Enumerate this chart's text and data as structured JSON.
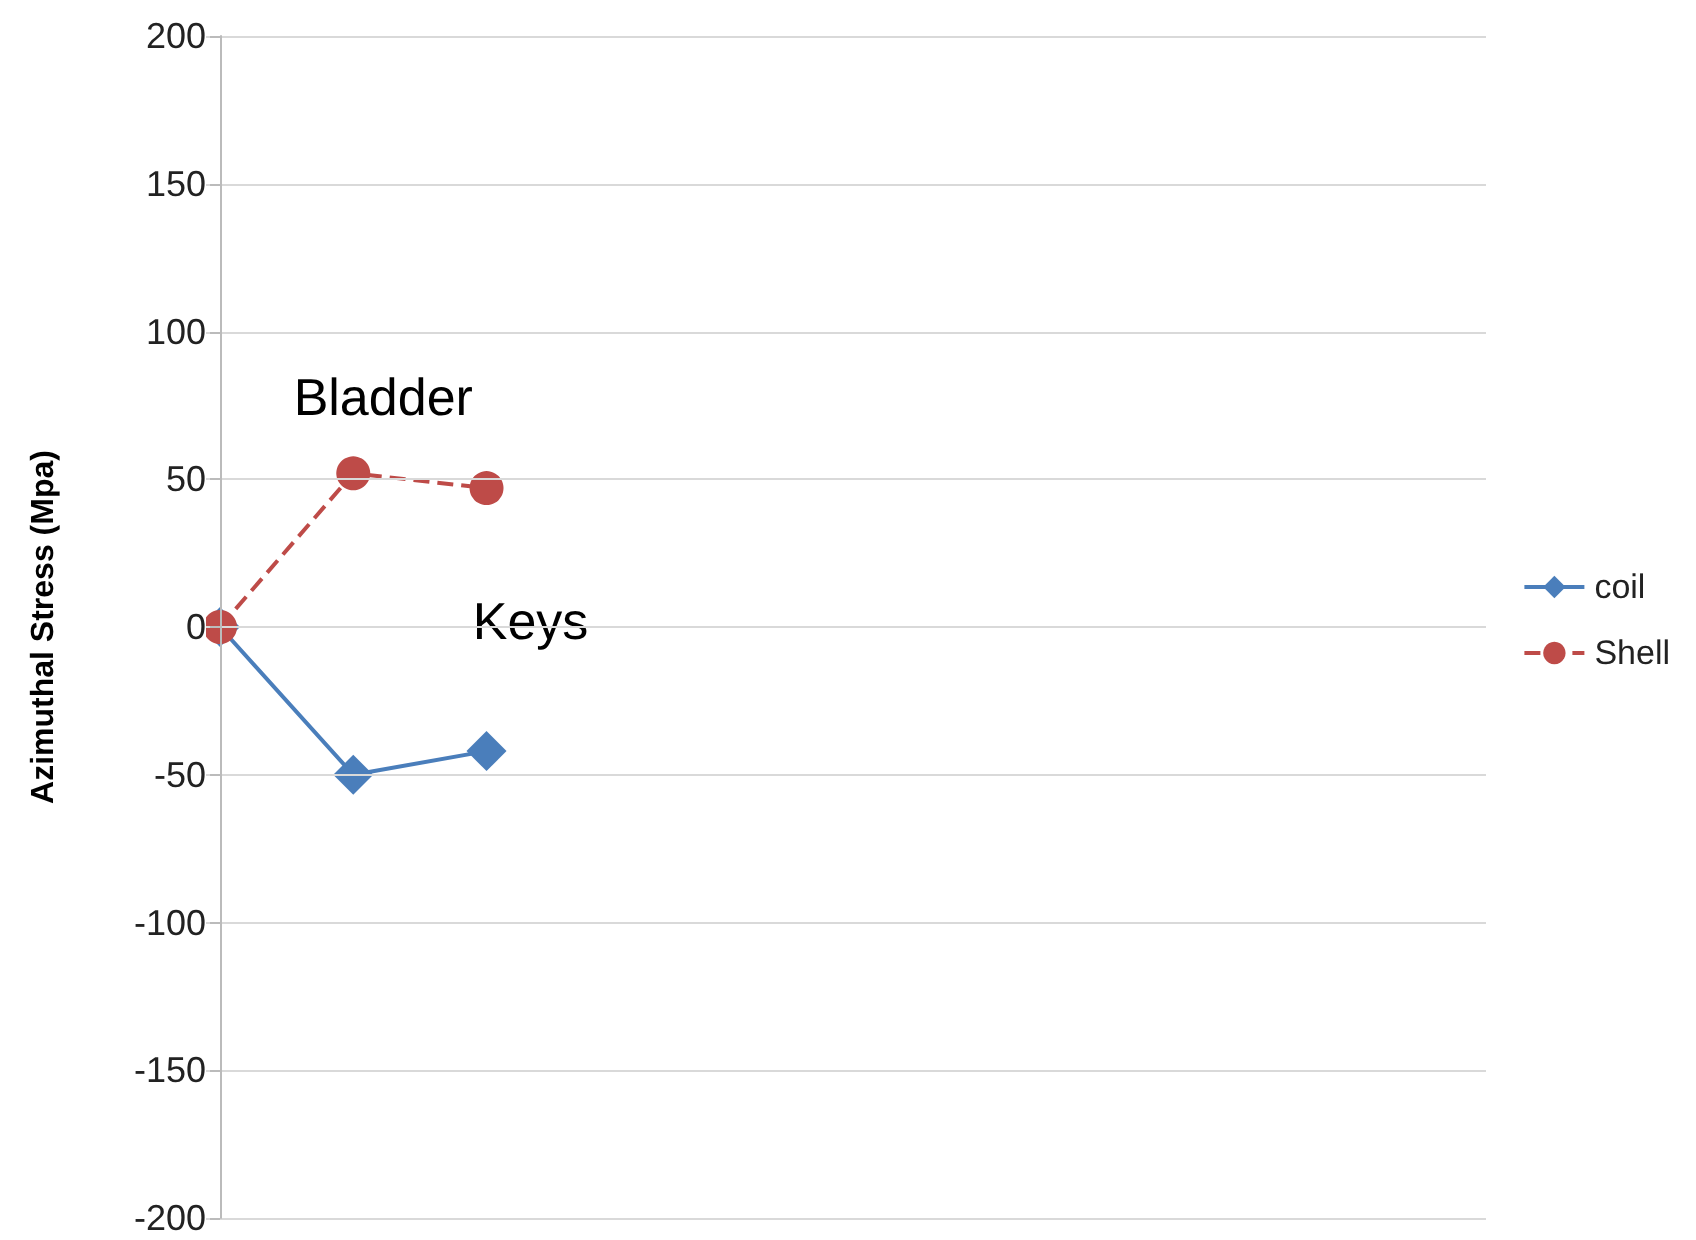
{
  "chart_data": {
    "type": "line",
    "ylabel": "Azimuthal Stress (Mpa)",
    "categories": [
      null,
      null,
      null,
      null,
      null,
      null,
      null,
      null,
      null,
      null
    ],
    "series": [
      {
        "name": "coil",
        "color": "#4a7ebb",
        "marker": "diamond",
        "line_style": "solid",
        "values": [
          0,
          -50,
          -42,
          null,
          null,
          null,
          null,
          null,
          null,
          null
        ]
      },
      {
        "name": "Shell",
        "color": "#be4b48",
        "marker": "circle",
        "line_style": "dashed",
        "values": [
          0,
          52,
          47,
          null,
          null,
          null,
          null,
          null,
          null,
          null
        ]
      }
    ],
    "ylim": [
      -200,
      200
    ],
    "yticks": [
      -200,
      -150,
      -100,
      -50,
      0,
      50,
      100,
      150,
      200
    ],
    "grid": "y",
    "legend": "right",
    "annotations": [
      "Bladder",
      "Keys"
    ]
  }
}
